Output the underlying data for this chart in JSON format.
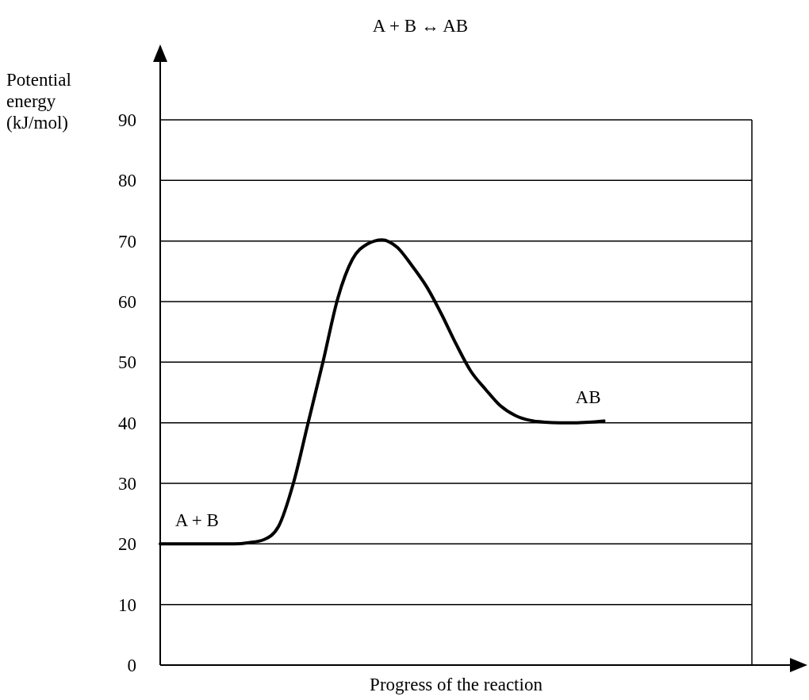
{
  "chart_data": {
    "type": "line",
    "title": "A  +  B  ↔  AB",
    "xlabel": "Progress of the reaction",
    "ylabel": "Potential energy (kJ/mol)",
    "categories": [
      null,
      null,
      null,
      null,
      null,
      null,
      null,
      null,
      null,
      null,
      null,
      null,
      null,
      null,
      null,
      null,
      null,
      null,
      null,
      null,
      null,
      null,
      null,
      null,
      null,
      null,
      null,
      null,
      null,
      null,
      null,
      null,
      null,
      null,
      null,
      null,
      null,
      null,
      null,
      null,
      null
    ],
    "series": [
      {
        "color": "#000000",
        "values": [
          20,
          20,
          20,
          20,
          20,
          20,
          20.2,
          20.7,
          22.9,
          30,
          40,
          50,
          60.5,
          67,
          69.5,
          70.2,
          69,
          66,
          62.5,
          58,
          53,
          48.5,
          45.5,
          42.8,
          41.2,
          40.4,
          40.1,
          40,
          40,
          40.1,
          40.3,
          null,
          null,
          null,
          null,
          null,
          null,
          null,
          null,
          null,
          null
        ]
      }
    ],
    "ylim": [
      0,
      90
    ],
    "yticks": [
      0,
      10,
      20,
      30,
      40,
      50,
      60,
      70,
      80,
      90
    ],
    "grid": "y",
    "marker": "none",
    "line_style": "solid",
    "tick_labels": "y",
    "annotations": [
      "A + B",
      "AB"
    ]
  }
}
